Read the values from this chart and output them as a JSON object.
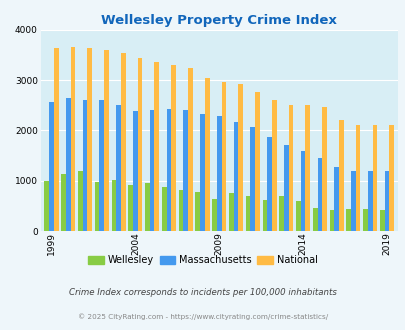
{
  "title": "Wellesley Property Crime Index",
  "years": [
    1999,
    2000,
    2001,
    2002,
    2003,
    2004,
    2005,
    2006,
    2007,
    2008,
    2009,
    2010,
    2011,
    2012,
    2013,
    2014,
    2015,
    2016,
    2017,
    2018,
    2019
  ],
  "wellesley": [
    1000,
    1140,
    1200,
    970,
    1020,
    920,
    960,
    880,
    820,
    780,
    640,
    760,
    700,
    620,
    700,
    590,
    450,
    420,
    430,
    430,
    420
  ],
  "massachusetts": [
    2570,
    2640,
    2610,
    2600,
    2500,
    2380,
    2410,
    2420,
    2410,
    2330,
    2280,
    2160,
    2060,
    1870,
    1700,
    1590,
    1460,
    1280,
    1200,
    1190,
    1190
  ],
  "national": [
    3640,
    3660,
    3630,
    3600,
    3540,
    3440,
    3360,
    3300,
    3230,
    3050,
    2970,
    2920,
    2760,
    2610,
    2510,
    2500,
    2470,
    2200,
    2100,
    2100,
    2100
  ],
  "wellesley_color": "#88cc44",
  "massachusetts_color": "#4499ee",
  "national_color": "#ffbb44",
  "bg_color": "#eef6fa",
  "plot_bg_color": "#d8eef5",
  "title_color": "#1166bb",
  "ylim": [
    0,
    4000
  ],
  "yticks": [
    0,
    1000,
    2000,
    3000,
    4000
  ],
  "tick_years": [
    1999,
    2004,
    2009,
    2014,
    2019
  ],
  "bar_width": 0.28,
  "ylabel_note": "Crime Index corresponds to incidents per 100,000 inhabitants",
  "footer": "© 2025 CityRating.com - https://www.cityrating.com/crime-statistics/"
}
